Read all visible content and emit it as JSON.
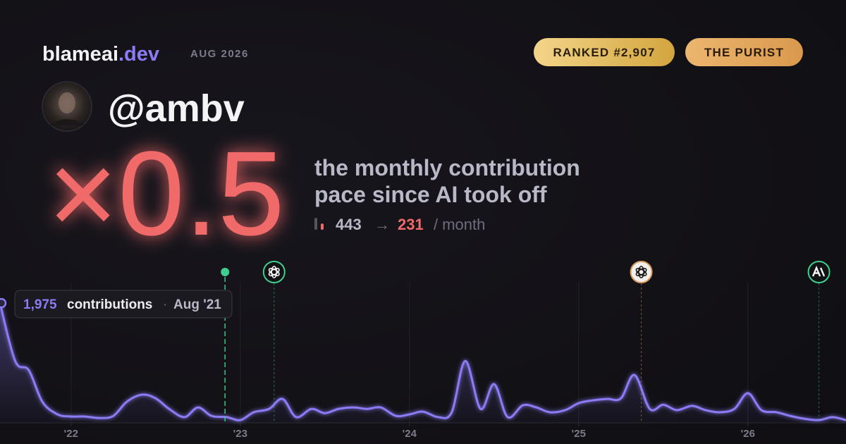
{
  "brand": {
    "name": "blameai",
    "tld": ".dev",
    "date": "AUG 2026"
  },
  "badges": [
    "RANKED #2,907",
    "THE PURIST"
  ],
  "user": {
    "handle": "@ambv"
  },
  "headline": {
    "multiplier": "×0.5",
    "description": [
      "the monthly contribution",
      "pace since AI took off"
    ]
  },
  "stats": {
    "before": 443,
    "arrow": "→",
    "after": 231,
    "unit": "/ month"
  },
  "chart_data": {
    "type": "line",
    "series": [
      {
        "name": "contributions",
        "color": "#8b7cf6",
        "x": [
          2021.58,
          2021.67,
          2021.75,
          2021.83,
          2021.92,
          2022.0,
          2022.08,
          2022.17,
          2022.25,
          2022.33,
          2022.42,
          2022.5,
          2022.58,
          2022.67,
          2022.75,
          2022.83,
          2022.92,
          2023.0,
          2023.08,
          2023.17,
          2023.25,
          2023.33,
          2023.42,
          2023.5,
          2023.58,
          2023.67,
          2023.75,
          2023.83,
          2023.92,
          2024.0,
          2024.08,
          2024.17,
          2024.25,
          2024.33,
          2024.42,
          2024.5,
          2024.58,
          2024.67,
          2024.75,
          2024.83,
          2024.92,
          2025.0,
          2025.08,
          2025.17,
          2025.25,
          2025.33,
          2025.42,
          2025.5,
          2025.58,
          2025.67,
          2025.75,
          2025.83,
          2025.92,
          2026.0,
          2026.08,
          2026.17,
          2026.25,
          2026.33,
          2026.42,
          2026.5,
          2026.58
        ],
        "values": [
          1975,
          1020,
          870,
          350,
          140,
          105,
          105,
          80,
          115,
          350,
          465,
          405,
          230,
          95,
          255,
          115,
          95,
          45,
          175,
          230,
          395,
          95,
          230,
          160,
          230,
          255,
          230,
          255,
          115,
          140,
          185,
          95,
          175,
          1020,
          230,
          640,
          95,
          290,
          255,
          175,
          210,
          325,
          370,
          395,
          405,
          790,
          230,
          300,
          210,
          280,
          210,
          175,
          230,
          490,
          210,
          175,
          115,
          70,
          45,
          95,
          45
        ]
      }
    ],
    "xlim": [
      2021.58,
      2026.58
    ],
    "xticks": [
      {
        "value": 2022,
        "label": "'22"
      },
      {
        "value": 2023,
        "label": "'23"
      },
      {
        "value": 2024,
        "label": "'24"
      },
      {
        "value": 2025,
        "label": "'25"
      },
      {
        "value": 2026,
        "label": "'26"
      }
    ],
    "ylim": [
      0,
      2000
    ],
    "grid": true,
    "tooltip": {
      "value": 1975,
      "label": "1,975",
      "unit": "contributions",
      "separator": "·",
      "date": "Aug '21"
    },
    "events": [
      {
        "x": 2022.91,
        "color": "#3ecf8e"
      },
      {
        "x": 2023.2,
        "color": "#3ecf8e"
      },
      {
        "x": 2025.37,
        "color": "#d99a5b"
      },
      {
        "x": 2026.42,
        "color": "#3ecf8e"
      }
    ]
  }
}
